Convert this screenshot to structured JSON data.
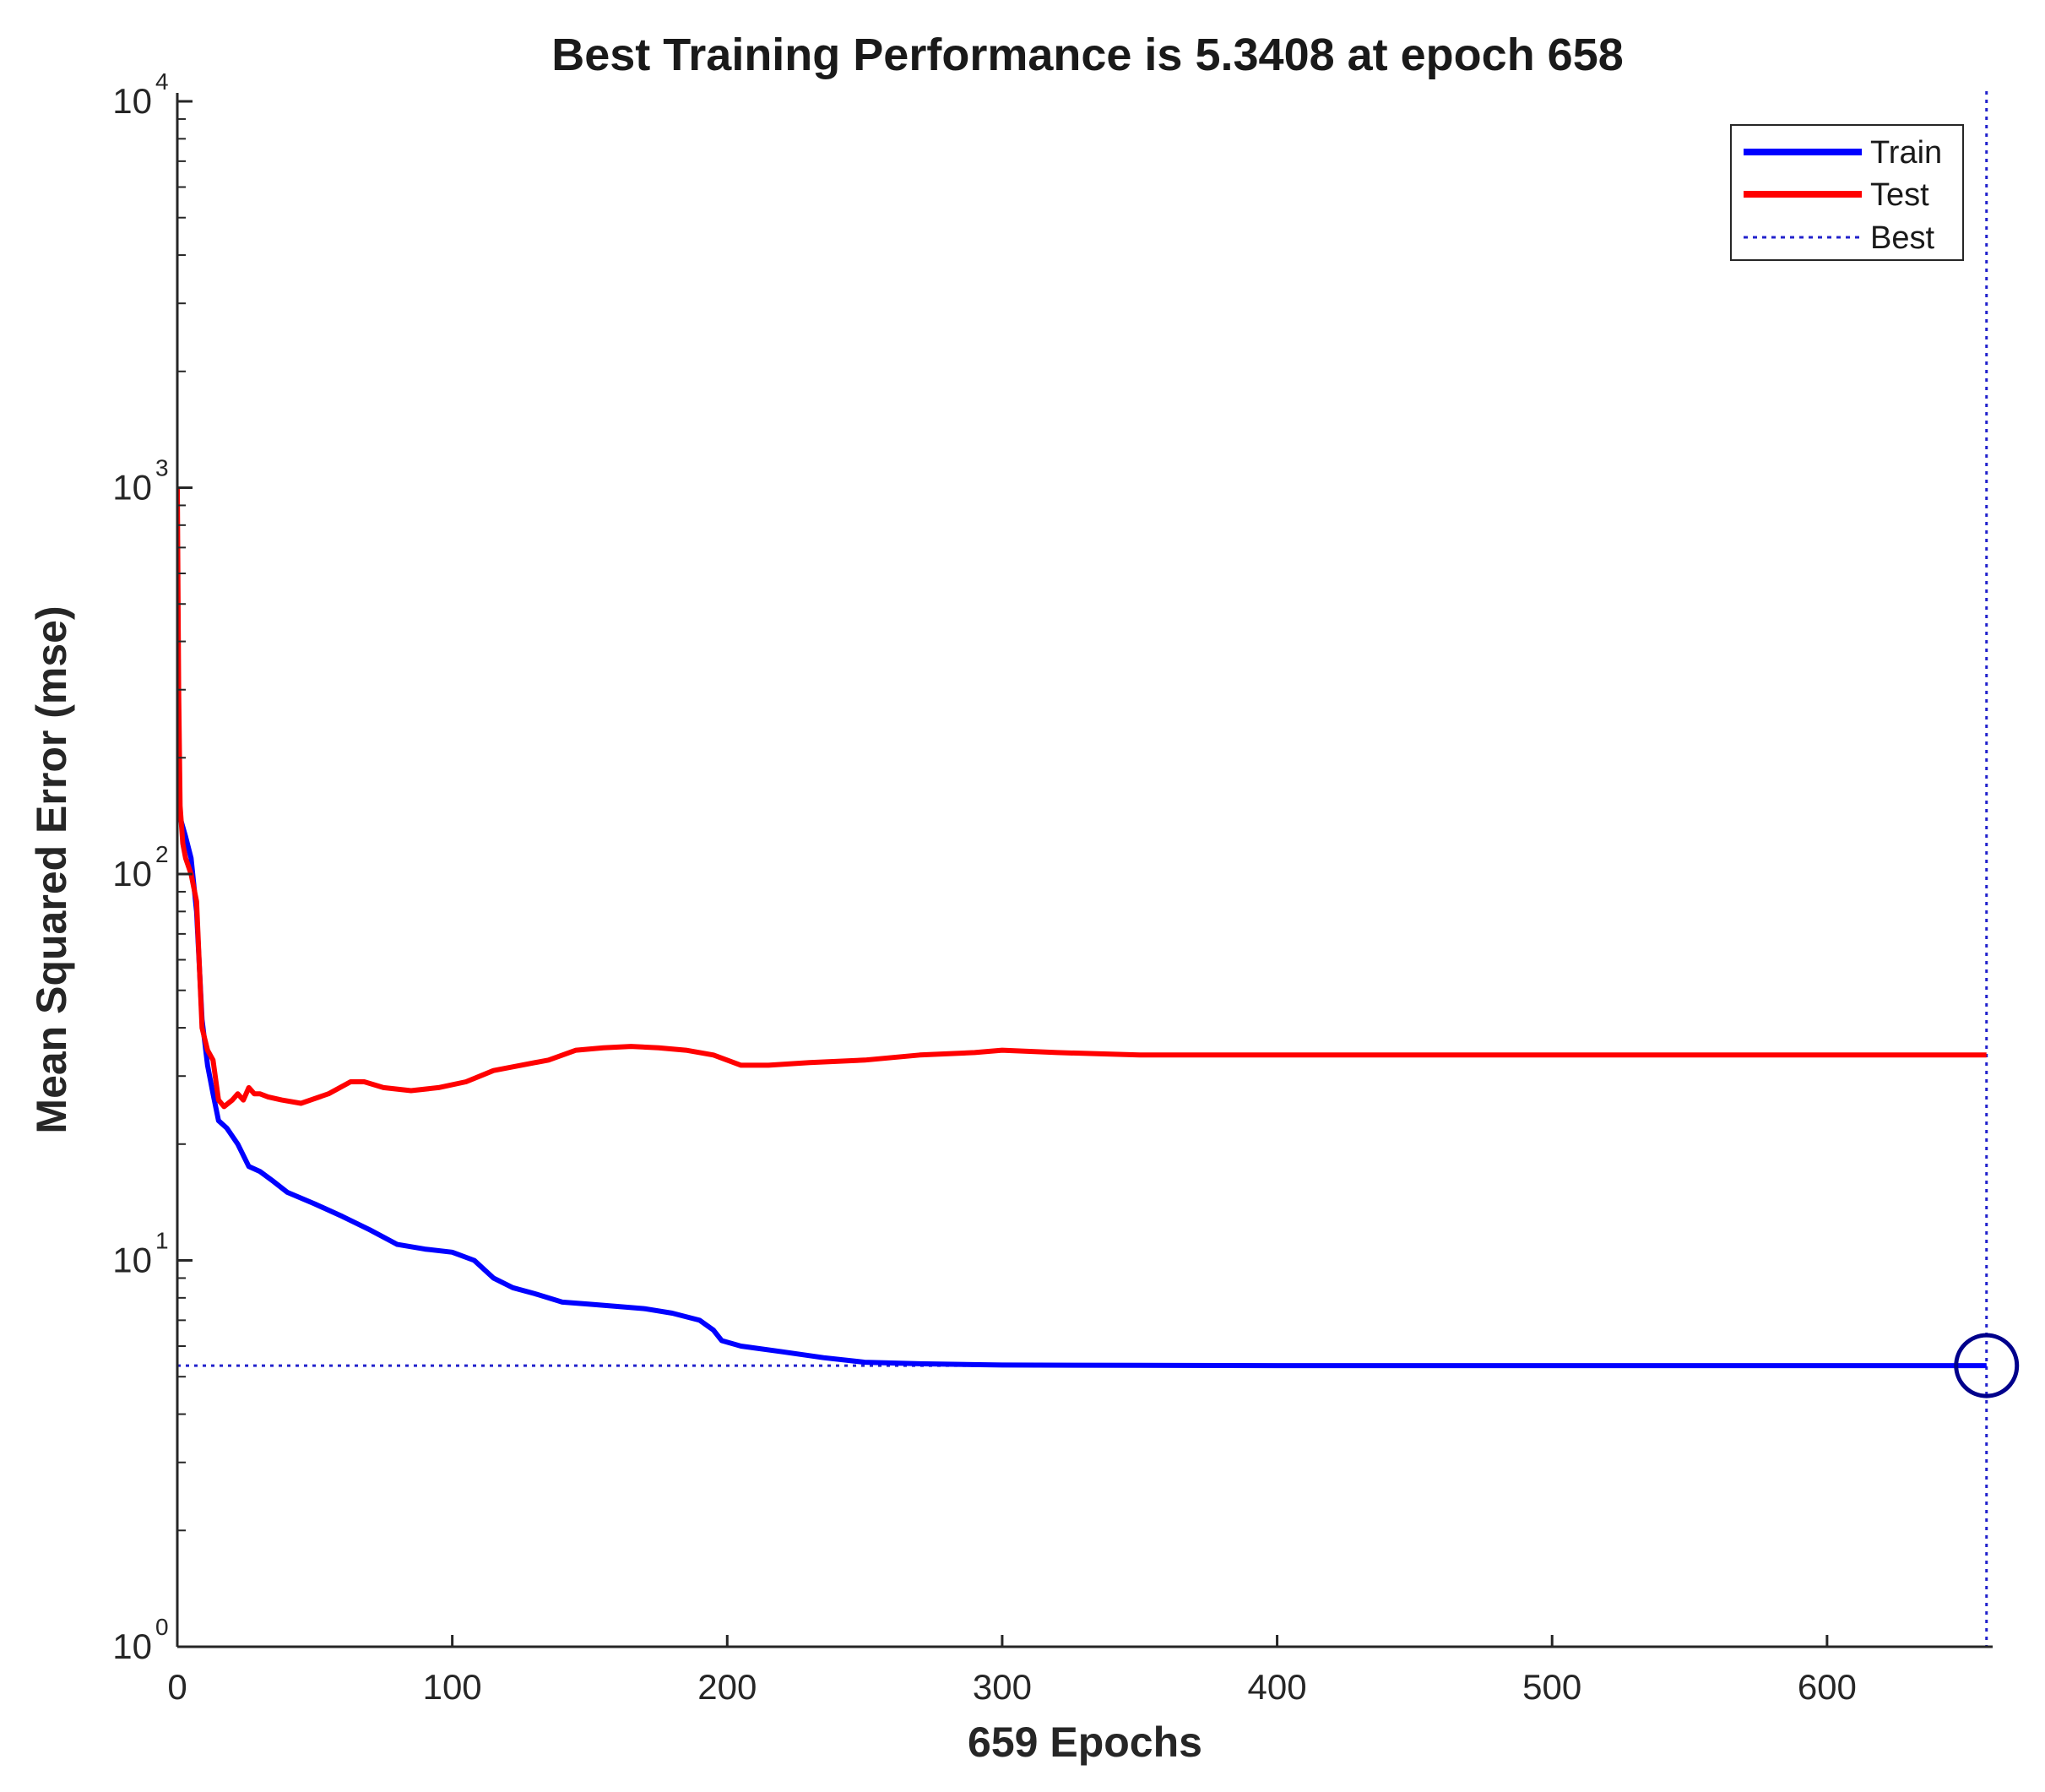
{
  "chart_data": {
    "type": "line",
    "title": "Best Training Performance is 5.3408 at epoch 658",
    "xlabel": "659 Epochs",
    "ylabel": "Mean Squared Error  (mse)",
    "xlim": [
      0,
      659
    ],
    "ylim": [
      1,
      10000
    ],
    "yscale": "log",
    "xticks": [
      0,
      100,
      200,
      300,
      400,
      500,
      600
    ],
    "yticks": [
      {
        "value": 1,
        "base": "10",
        "exp": "0"
      },
      {
        "value": 10,
        "base": "10",
        "exp": "1"
      },
      {
        "value": 100,
        "base": "10",
        "exp": "2"
      },
      {
        "value": 1000,
        "base": "10",
        "exp": "3"
      },
      {
        "value": 10000,
        "base": "10",
        "exp": "4"
      }
    ],
    "grid": false,
    "legend_position": "top-right",
    "series": [
      {
        "name": "Train",
        "color": "#0000ff",
        "x": [
          0,
          1,
          3,
          5,
          7,
          9,
          11,
          13,
          15,
          18,
          22,
          26,
          30,
          35,
          40,
          50,
          60,
          70,
          80,
          90,
          100,
          108,
          115,
          122,
          130,
          140,
          150,
          160,
          170,
          180,
          190,
          195,
          198,
          205,
          220,
          235,
          250,
          270,
          300,
          350,
          400,
          450,
          500,
          550,
          600,
          658
        ],
        "y": [
          160,
          140,
          125,
          110,
          80,
          42,
          32,
          27,
          23,
          22,
          20,
          17.5,
          17,
          16,
          15,
          14,
          13,
          12,
          11,
          10.7,
          10.5,
          10,
          9,
          8.5,
          8.2,
          7.8,
          7.7,
          7.6,
          7.5,
          7.3,
          7,
          6.6,
          6.2,
          6.0,
          5.8,
          5.6,
          5.45,
          5.4,
          5.36,
          5.35,
          5.34,
          5.34,
          5.34,
          5.34,
          5.34,
          5.3408
        ]
      },
      {
        "name": "Test",
        "color": "#ff0000",
        "x": [
          0,
          0.5,
          1,
          2,
          3,
          5,
          7,
          9,
          11,
          13,
          15,
          17,
          20,
          22,
          24,
          26,
          28,
          30,
          33,
          38,
          45,
          55,
          63,
          68,
          75,
          85,
          95,
          105,
          115,
          125,
          135,
          145,
          155,
          165,
          175,
          185,
          195,
          205,
          215,
          230,
          250,
          270,
          290,
          300,
          320,
          350,
          400,
          450,
          500,
          550,
          600,
          658
        ],
        "y": [
          1000,
          300,
          150,
          120,
          110,
          100,
          85,
          40,
          35,
          33,
          26,
          25,
          26,
          27,
          26,
          28,
          27,
          27,
          26.5,
          26,
          25.5,
          27,
          29,
          29,
          28,
          27.5,
          28,
          29,
          31,
          32,
          33,
          35,
          35.5,
          35.8,
          35.5,
          35,
          34,
          32,
          32,
          32.5,
          33,
          34,
          34.5,
          35,
          34.5,
          34,
          34,
          34,
          34,
          34,
          34,
          34
        ]
      }
    ],
    "best": {
      "name": "Best",
      "epoch": 658,
      "value": 5.3408,
      "color": "#2222cc"
    }
  }
}
